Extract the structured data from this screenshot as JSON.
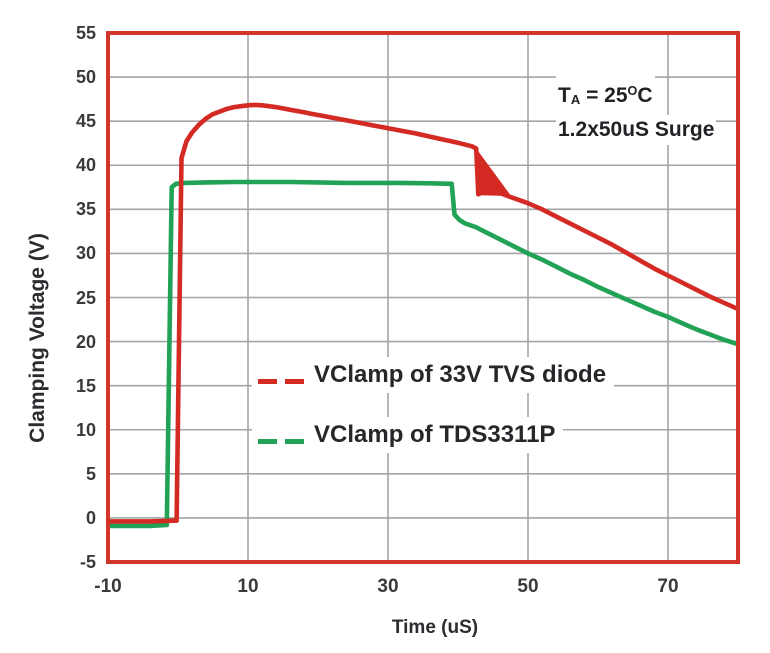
{
  "annotation": {
    "temp_t": "T",
    "temp_sub": "A",
    "temp_mid": " = 25",
    "temp_sup": "O",
    "temp_end": "C",
    "surge": "1.2x50uS Surge"
  },
  "chart_data": {
    "type": "line",
    "x_axis": {
      "label": "Time (uS)",
      "range": [
        -10,
        80
      ],
      "tick_labels": [
        -10,
        10,
        30,
        50,
        70
      ],
      "gridlines": [
        10,
        30,
        50,
        70
      ]
    },
    "y_axis": {
      "label": "Clamping Voltage (V)",
      "range": [
        -5,
        55
      ],
      "tick_labels": [
        55,
        50,
        45,
        40,
        35,
        30,
        25,
        20,
        15,
        10,
        5,
        0,
        -5
      ],
      "gridlines": [
        0,
        5,
        10,
        15,
        20,
        25,
        30,
        35,
        40,
        45,
        50
      ]
    },
    "grid_on": true,
    "legend_position": "inside-center-left",
    "series": [
      {
        "name": "VClamp of 33V TVS diode",
        "color": "#d42a24",
        "points": [
          [
            -10,
            -0.4
          ],
          [
            -4,
            -0.4
          ],
          [
            -0.2,
            -0.3
          ],
          [
            0.5,
            40.8
          ],
          [
            1.2,
            42.7
          ],
          [
            2,
            43.7
          ],
          [
            3,
            44.6
          ],
          [
            4,
            45.3
          ],
          [
            5,
            45.8
          ],
          [
            6,
            46.1
          ],
          [
            7,
            46.4
          ],
          [
            8,
            46.6
          ],
          [
            9,
            46.7
          ],
          [
            10,
            46.8
          ],
          [
            11,
            46.85
          ],
          [
            12,
            46.8
          ],
          [
            13,
            46.7
          ],
          [
            14,
            46.6
          ],
          [
            15,
            46.45
          ],
          [
            16,
            46.3
          ],
          [
            17,
            46.15
          ],
          [
            18,
            46.0
          ],
          [
            19,
            45.85
          ],
          [
            20,
            45.7
          ],
          [
            22,
            45.4
          ],
          [
            24,
            45.1
          ],
          [
            26,
            44.8
          ],
          [
            28,
            44.5
          ],
          [
            30,
            44.2
          ],
          [
            32,
            43.9
          ],
          [
            34,
            43.6
          ],
          [
            36,
            43.25
          ],
          [
            38,
            42.9
          ],
          [
            40,
            42.55
          ],
          [
            42,
            42.15
          ],
          [
            42.6,
            41.9
          ],
          [
            42.9,
            36.7
          ],
          [
            44,
            37.1
          ],
          [
            45.5,
            37.0
          ],
          [
            47.5,
            36.4
          ],
          [
            50,
            35.7
          ],
          [
            52,
            35.0
          ],
          [
            54,
            34.2
          ],
          [
            56,
            33.4
          ],
          [
            58,
            32.6
          ],
          [
            60,
            31.8
          ],
          [
            62,
            31.0
          ],
          [
            64,
            30.1
          ],
          [
            66,
            29.2
          ],
          [
            68,
            28.3
          ],
          [
            70,
            27.5
          ],
          [
            72,
            26.7
          ],
          [
            74,
            25.9
          ],
          [
            76,
            25.1
          ],
          [
            78,
            24.4
          ],
          [
            80,
            23.7
          ]
        ]
      },
      {
        "name": "VClamp of TDS3311P",
        "color": "#22a257",
        "points": [
          [
            -10,
            -0.9
          ],
          [
            -4,
            -0.9
          ],
          [
            -1.6,
            -0.8
          ],
          [
            -0.9,
            37.5
          ],
          [
            -0.3,
            37.9
          ],
          [
            1,
            38.0
          ],
          [
            4,
            38.05
          ],
          [
            8,
            38.1
          ],
          [
            12,
            38.1
          ],
          [
            16,
            38.1
          ],
          [
            20,
            38.05
          ],
          [
            24,
            38.0
          ],
          [
            28,
            38.0
          ],
          [
            32,
            38.0
          ],
          [
            36,
            37.95
          ],
          [
            39.1,
            37.9
          ],
          [
            39.5,
            34.4
          ],
          [
            40.2,
            33.8
          ],
          [
            41,
            33.4
          ],
          [
            42.5,
            33.0
          ],
          [
            44,
            32.4
          ],
          [
            46,
            31.6
          ],
          [
            48,
            30.8
          ],
          [
            50,
            30.0
          ],
          [
            52,
            29.3
          ],
          [
            54,
            28.5
          ],
          [
            56,
            27.7
          ],
          [
            58,
            27.0
          ],
          [
            60,
            26.2
          ],
          [
            62,
            25.5
          ],
          [
            64,
            24.8
          ],
          [
            66,
            24.1
          ],
          [
            68,
            23.4
          ],
          [
            70,
            22.8
          ],
          [
            72,
            22.1
          ],
          [
            74,
            21.4
          ],
          [
            76,
            20.8
          ],
          [
            78,
            20.2
          ],
          [
            80,
            19.7
          ]
        ]
      }
    ],
    "surge_notch": {
      "series": "VClamp of 33V TVS diode",
      "polygon": [
        [
          42.6,
          41.9
        ],
        [
          42.95,
          36.6
        ],
        [
          47.6,
          36.5
        ]
      ]
    },
    "colors": {
      "plot_border": "#d4352b",
      "grid": "#a5a5a5",
      "text": "#3a3a3e",
      "background": "#ffffff"
    }
  }
}
